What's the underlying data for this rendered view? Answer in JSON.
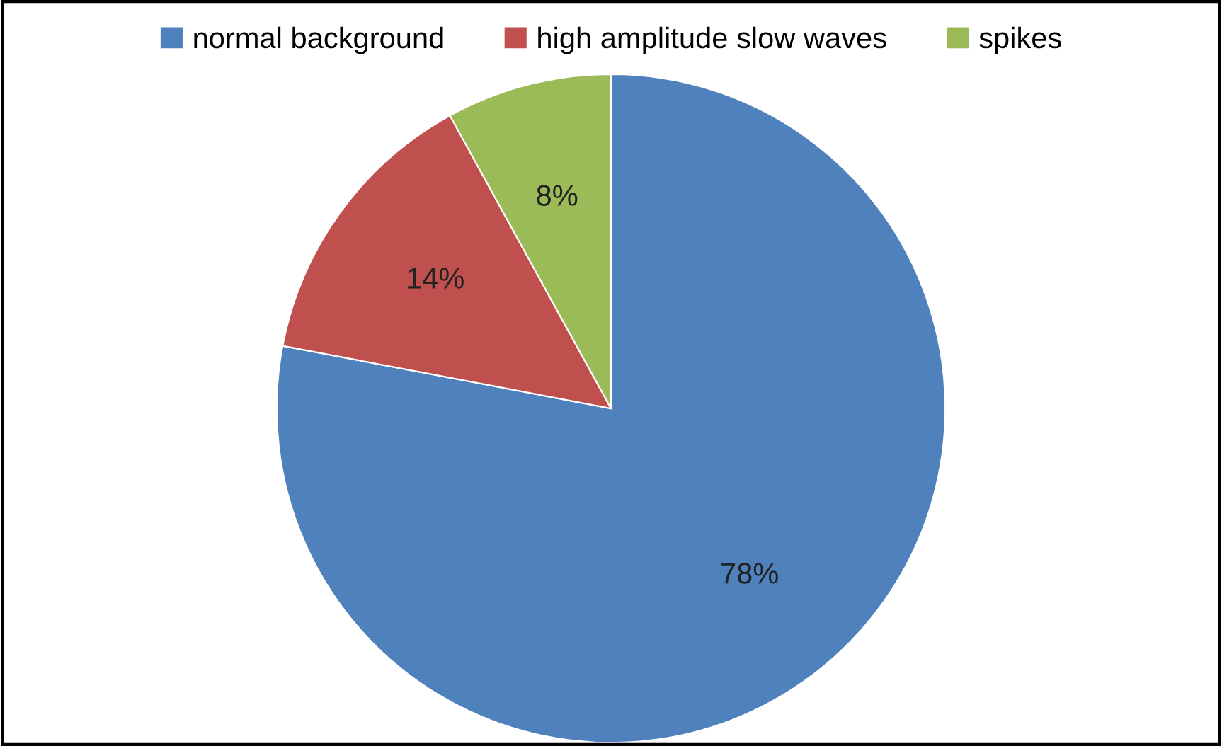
{
  "chart_data": {
    "type": "pie",
    "categories": [
      "normal background",
      "high amplitude slow waves",
      "spikes"
    ],
    "values": [
      78,
      14,
      8
    ],
    "colors": [
      "#4f81bd",
      "#c0504d",
      "#9bbb59"
    ],
    "value_labels": [
      "78%",
      "14%",
      "8%"
    ],
    "legend": "top"
  }
}
